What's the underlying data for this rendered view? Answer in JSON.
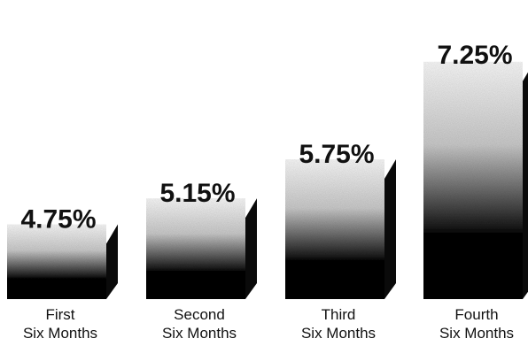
{
  "chart_data": {
    "type": "bar",
    "categories": [
      [
        "First",
        "Six Months"
      ],
      [
        "Second",
        "Six Months"
      ],
      [
        "Third",
        "Six Months"
      ],
      [
        "Fourth",
        "Six Months"
      ]
    ],
    "values": [
      4.75,
      5.15,
      5.75,
      7.25
    ],
    "value_labels": [
      "4.75%",
      "5.15%",
      "5.75%",
      "7.25%"
    ],
    "title": "",
    "xlabel": "",
    "ylabel": "",
    "ylim": [
      3.6,
      7.9
    ],
    "grid": false,
    "legend": "none",
    "colors": {
      "bar_dark": "#0d0d0d",
      "bar_light": "#cfcfcf",
      "side_face": "#0a0a0a",
      "text": "#111111",
      "background": "#ffffff"
    }
  }
}
